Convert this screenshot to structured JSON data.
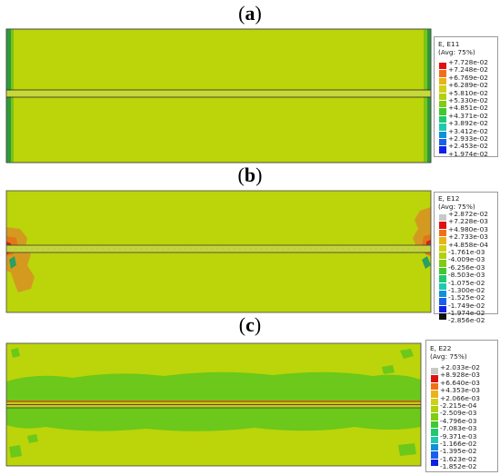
{
  "panels": [
    {
      "label": "a",
      "legend": {
        "title_line1": "E, E11",
        "title_line2": "(Avg: 75%)",
        "values": [
          "+7.728e-02",
          "+7.248e-02",
          "+6.769e-02",
          "+6.289e-02",
          "+5.810e-02",
          "+5.330e-02",
          "+4.851e-02",
          "+4.371e-02",
          "+3.892e-02",
          "+3.412e-02",
          "+2.933e-02",
          "+2.453e-02",
          "+1.974e-02"
        ],
        "colors": [
          "#e01010",
          "#f07018",
          "#e8b418",
          "#d0d018",
          "#b0d010",
          "#80cc10",
          "#40c830",
          "#20c870",
          "#20c8b0",
          "#1090d8",
          "#1860e8",
          "#1020e8"
        ]
      }
    },
    {
      "label": "b",
      "legend": {
        "title_line1": "E, E12",
        "title_line2": "(Avg: 75%)",
        "values": [
          "+2.872e-02",
          "+7.228e-03",
          "+4.980e-03",
          "+2.733e-03",
          "+4.858e-04",
          "-1.761e-03",
          "-4.009e-03",
          "-6.256e-03",
          "-8.503e-03",
          "-1.075e-02",
          "-1.300e-02",
          "-1.525e-02",
          "-1.749e-02",
          "-1.974e-02",
          "-2.856e-02"
        ],
        "colors": [
          "#c8c8c8",
          "#e01010",
          "#f07018",
          "#e8b418",
          "#d0d018",
          "#b0d010",
          "#80cc10",
          "#40c830",
          "#20c870",
          "#20c8b0",
          "#1090d8",
          "#1860e8",
          "#1020e8",
          "#101010"
        ]
      }
    },
    {
      "label": "c",
      "legend": {
        "title_line1": "E, E22",
        "title_line2": "(Avg: 75%)",
        "values": [
          "+2.033e-02",
          "+8.928e-03",
          "+6.640e-03",
          "+4.353e-03",
          "+2.066e-03",
          "-2.215e-04",
          "-2.509e-03",
          "-4.796e-03",
          "-7.083e-03",
          "-9.371e-03",
          "-1.166e-02",
          "-1.395e-02",
          "-1.623e-02",
          "-1.852e-02"
        ],
        "colors": [
          "#c8c8c8",
          "#e01010",
          "#f07018",
          "#e8b418",
          "#d0d018",
          "#b0d010",
          "#80cc10",
          "#40c830",
          "#20c870",
          "#20c8b0",
          "#1090d8",
          "#1860e8",
          "#1020e8"
        ]
      }
    }
  ],
  "field_colors": {
    "base_yellowgreen": "#bcd40a",
    "green": "#6cc81a",
    "orange": "#e07818",
    "red": "#d82010",
    "blue_green": "#18a8a0"
  }
}
